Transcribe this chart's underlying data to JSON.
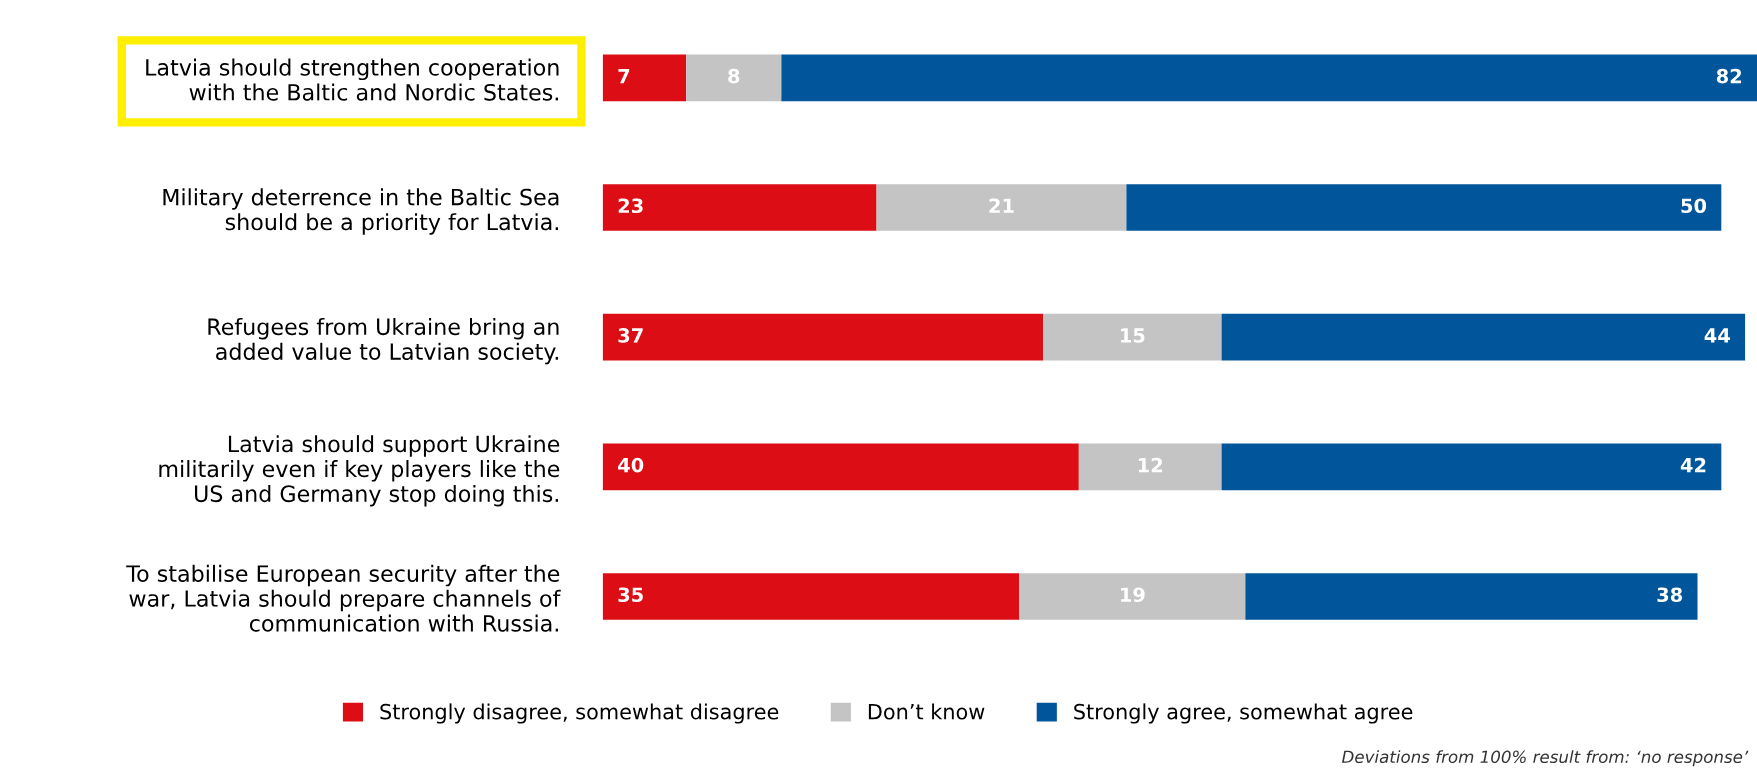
{
  "chart_data": {
    "type": "bar",
    "orientation": "horizontal",
    "stacked": true,
    "data_labels": true,
    "legend": "bottom",
    "categories": [
      "Latvia should strengthen cooperation\nwith the Baltic and Nordic States.",
      "Military deterrence in the Baltic Sea\nshould be a priority for Latvia.",
      "Refugees from Ukraine bring an\nadded value to Latvian society.",
      "Latvia should support Ukraine\nmilitarily even if key players like the\nUS and Germany stop doing this.",
      "To stabilise European security after the\nwar, Latvia should prepare channels of\ncommunication with Russia."
    ],
    "series": [
      {
        "name": "Strongly disagree, somewhat disagree",
        "color": "#dc0d15",
        "values": [
          7,
          23,
          37,
          40,
          35
        ]
      },
      {
        "name": "Don’t know",
        "color": "#c4c4c4",
        "values": [
          8,
          21,
          15,
          12,
          19
        ]
      },
      {
        "name": "Strongly agree, somewhat agree",
        "color": "#00559b",
        "values": [
          82,
          50,
          44,
          42,
          38
        ]
      }
    ],
    "annotations": [
      "Deviations from 100% result from: ‘no response’"
    ]
  }
}
